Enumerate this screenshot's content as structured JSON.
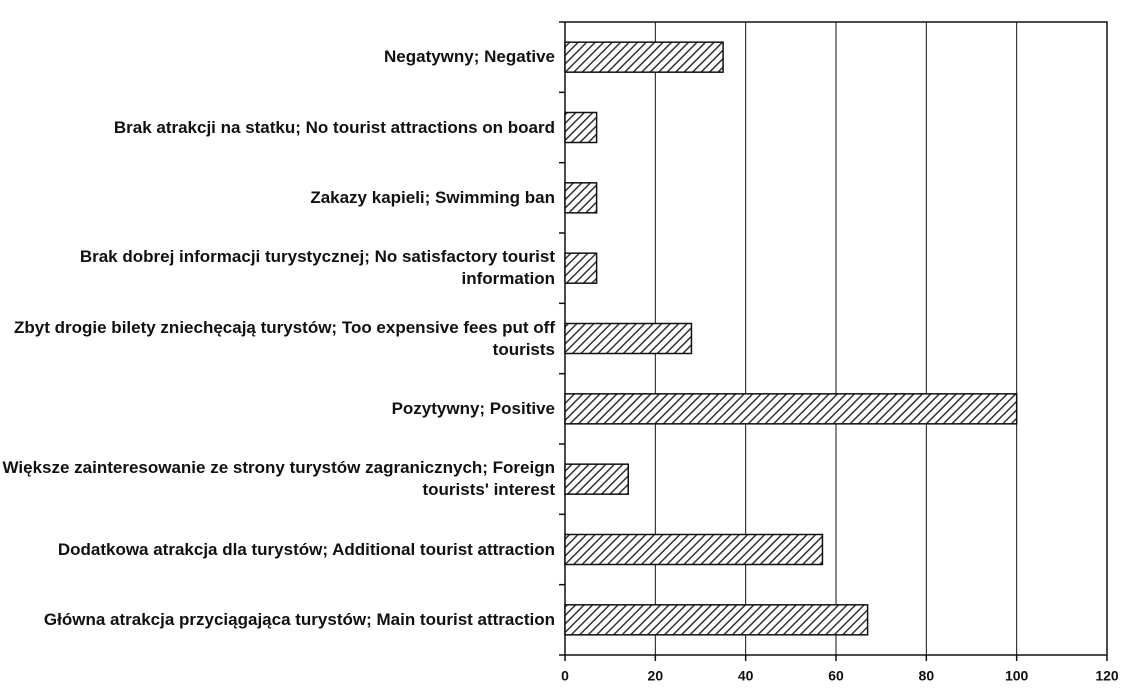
{
  "chart_data": {
    "type": "bar",
    "orientation": "horizontal",
    "categories": [
      "Negatywny; Negative",
      "Brak atrakcji na statku; No tourist attractions on board",
      "Zakazy kapieli; Swimming ban",
      "Brak dobrej informacji turystycznej; No satisfactory tourist information",
      "Zbyt drogie bilety zniechęcają turystów; Too expensive fees put off tourists",
      "Pozytywny; Positive",
      "Większe zainteresowanie ze strony turystów zagranicznych; Foreign tourists' interest",
      "Dodatkowa atrakcja dla turystów; Additional tourist attraction",
      "Główna atrakcja przyciągająca turystów; Main tourist attraction"
    ],
    "values": [
      35,
      7,
      7,
      7,
      28,
      100,
      14,
      57,
      67
    ],
    "color": "#333333",
    "xlim": [
      0,
      120
    ],
    "xticks": [
      0,
      20,
      40,
      60,
      80,
      100,
      120
    ],
    "grid": true
  }
}
